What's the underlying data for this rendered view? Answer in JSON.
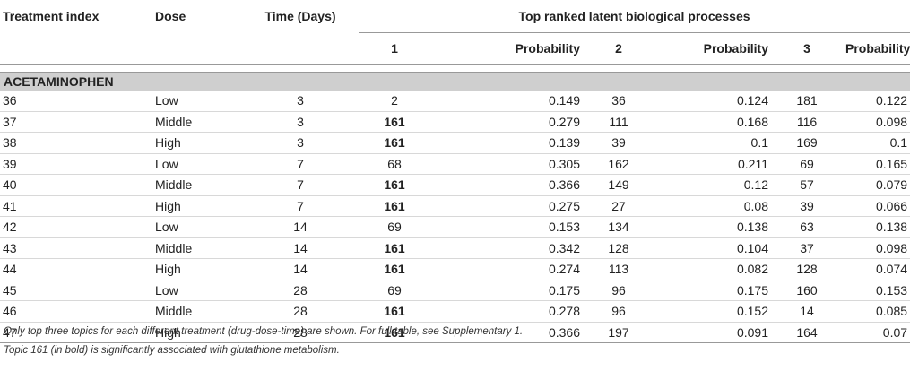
{
  "header": {
    "treatment_index": "Treatment index",
    "dose": "Dose",
    "time": "Time (Days)",
    "group": "Top ranked latent biological processes",
    "sub": [
      "1",
      "Probability",
      "2",
      "Probability",
      "3",
      "Probability"
    ]
  },
  "section_label": "ACETAMINOPHEN",
  "rows": [
    {
      "idx": "36",
      "dose": "Low",
      "time": "3",
      "t1": "2",
      "p1": "0.149",
      "t2": "36",
      "p2": "0.124",
      "t3": "181",
      "p3": "0.122"
    },
    {
      "idx": "37",
      "dose": "Middle",
      "time": "3",
      "t1": "161",
      "p1": "0.279",
      "t2": "111",
      "p2": "0.168",
      "t3": "116",
      "p3": "0.098"
    },
    {
      "idx": "38",
      "dose": "High",
      "time": "3",
      "t1": "161",
      "p1": "0.139",
      "t2": "39",
      "p2": "0.1",
      "t3": "169",
      "p3": "0.1"
    },
    {
      "idx": "39",
      "dose": "Low",
      "time": "7",
      "t1": "68",
      "p1": "0.305",
      "t2": "162",
      "p2": "0.211",
      "t3": "69",
      "p3": "0.165"
    },
    {
      "idx": "40",
      "dose": "Middle",
      "time": "7",
      "t1": "161",
      "p1": "0.366",
      "t2": "149",
      "p2": "0.12",
      "t3": "57",
      "p3": "0.079"
    },
    {
      "idx": "41",
      "dose": "High",
      "time": "7",
      "t1": "161",
      "p1": "0.275",
      "t2": "27",
      "p2": "0.08",
      "t3": "39",
      "p3": "0.066"
    },
    {
      "idx": "42",
      "dose": "Low",
      "time": "14",
      "t1": "69",
      "p1": "0.153",
      "t2": "134",
      "p2": "0.138",
      "t3": "63",
      "p3": "0.138"
    },
    {
      "idx": "43",
      "dose": "Middle",
      "time": "14",
      "t1": "161",
      "p1": "0.342",
      "t2": "128",
      "p2": "0.104",
      "t3": "37",
      "p3": "0.098"
    },
    {
      "idx": "44",
      "dose": "High",
      "time": "14",
      "t1": "161",
      "p1": "0.274",
      "t2": "113",
      "p2": "0.082",
      "t3": "128",
      "p3": "0.074"
    },
    {
      "idx": "45",
      "dose": "Low",
      "time": "28",
      "t1": "69",
      "p1": "0.175",
      "t2": "96",
      "p2": "0.175",
      "t3": "160",
      "p3": "0.153"
    },
    {
      "idx": "46",
      "dose": "Middle",
      "time": "28",
      "t1": "161",
      "p1": "0.278",
      "t2": "96",
      "p2": "0.152",
      "t3": "14",
      "p3": "0.085"
    },
    {
      "idx": "47",
      "dose": "High",
      "time": "28",
      "t1": "161",
      "p1": "0.366",
      "t2": "197",
      "p2": "0.091",
      "t3": "164",
      "p3": "0.07"
    }
  ],
  "bold_topic": "161",
  "notes": [
    "Only top three topics for each different treatment (drug-dose-time) are shown. For full table, see Supplementary 1.",
    "Topic 161 (in bold) is significantly associated with glutathione metabolism."
  ]
}
